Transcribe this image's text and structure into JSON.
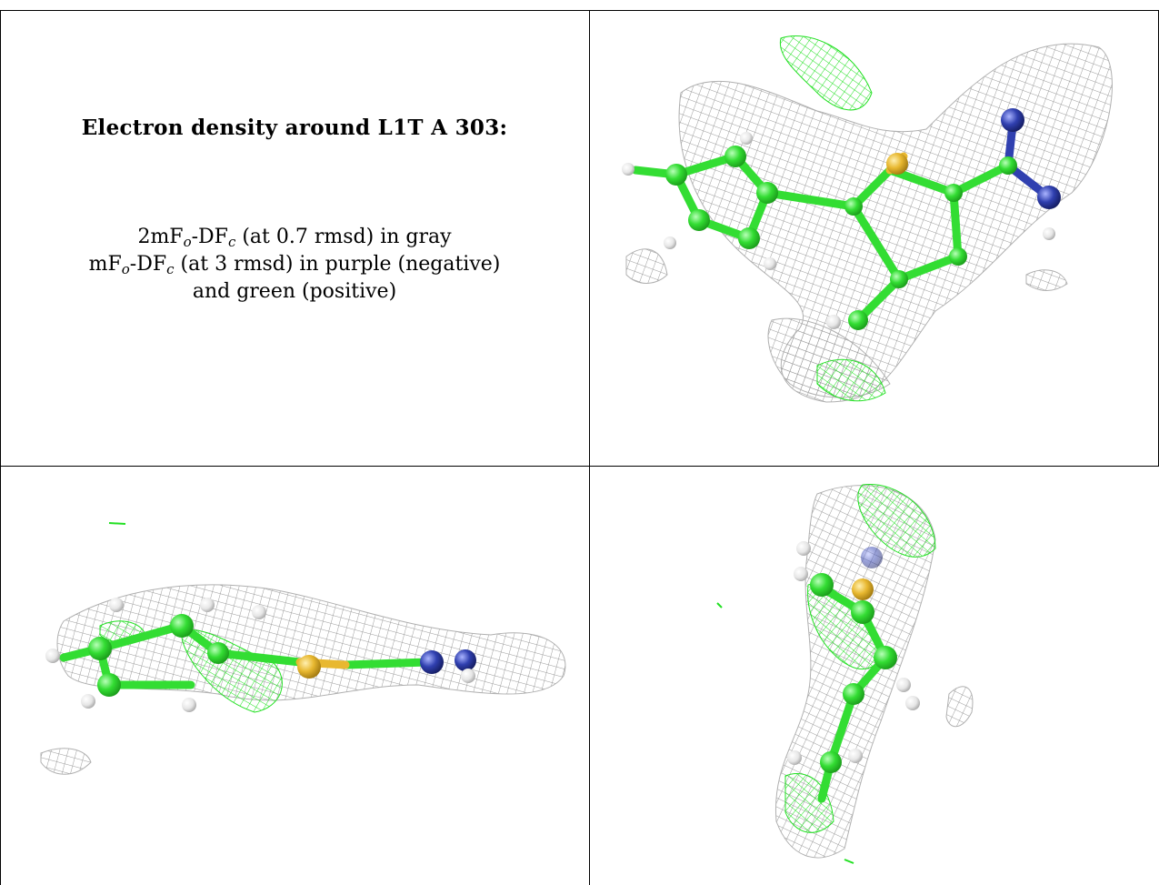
{
  "caption": {
    "title": "Electron density around L1T A 303:",
    "line1_parts": [
      "2mF",
      "o",
      "-DF",
      "c",
      " (at 0.7 rmsd) in gray"
    ],
    "line2_parts": [
      "mF",
      "o",
      "-DF",
      "c",
      " (at 3 rmsd) in purple (negative)"
    ],
    "line3": "and green (positive)"
  },
  "colors": {
    "map_gray": "#9a9a9a",
    "map_green": "#22e022",
    "carbon": "#33dd33",
    "sulfur": "#e8b830",
    "nitrogen": "#3040b0",
    "hydrogen": "#e6e6e6",
    "border": "#000000"
  },
  "panels": [
    "view-top-right",
    "view-bottom-left",
    "view-bottom-right"
  ]
}
